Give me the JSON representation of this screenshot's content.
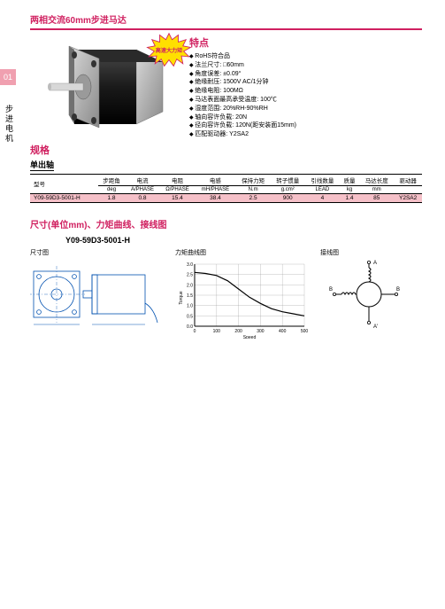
{
  "side": {
    "tab": "01",
    "text": "步进电机"
  },
  "title": "两相交流60mm步进马达",
  "starburst": "高速大力矩",
  "features": {
    "heading": "特点",
    "items": [
      "RoHS符合品",
      "法兰尺寸: □60mm",
      "角度误差: ±0.09°",
      "绝缘耐压: 1500V AC/1分钟",
      "绝缘电阻: 100MΩ",
      "马达表面最高承受温度: 100℃",
      "湿度范围: 20%RH-90%RH",
      "轴向容许负载: 20N",
      "径向容许负载: 120N(距安装面15mm)",
      "匹配驱动器: Y2SA2"
    ]
  },
  "spec": {
    "heading": "规格",
    "sub": "单出轴",
    "columns": [
      "型号",
      "步距角",
      "电流",
      "电阻",
      "电感",
      "保持力矩",
      "转子惯量",
      "引线数量",
      "质量",
      "马达长度",
      "驱动器"
    ],
    "units": [
      "",
      "deg",
      "A/PHASE",
      "Ω/PHASE",
      "mH/PHASE",
      "N.m",
      "g.cm²",
      "LEAD",
      "kg",
      "mm",
      ""
    ],
    "row": [
      "Y09-59D3-5001-H",
      "1.8",
      "0.8",
      "15.4",
      "38.4",
      "2.5",
      "900",
      "4",
      "1.4",
      "85",
      "Y2SA2"
    ],
    "colors": {
      "row_bg": "#f5c0c8",
      "accent": "#d02060"
    }
  },
  "section2": {
    "heading": "尺寸(单位mm)、力矩曲线、接线图",
    "model": "Y09-59D3-5001-H",
    "labels": {
      "dim": "尺寸图",
      "curve": "力矩曲线图",
      "wire": "接线图"
    }
  },
  "curve": {
    "ylabel": "Torque",
    "xlabel": "Speed",
    "yticks": [
      0.0,
      0.5,
      1.0,
      1.5,
      2.0,
      2.5,
      3.0
    ],
    "xticks": [
      0,
      100,
      200,
      300,
      400,
      500
    ],
    "axis_color": "#000000",
    "grid_color": "#999999",
    "line_color": "#000000",
    "line_width": 1.2,
    "points": [
      [
        0,
        2.6
      ],
      [
        50,
        2.55
      ],
      [
        100,
        2.45
      ],
      [
        150,
        2.2
      ],
      [
        200,
        1.8
      ],
      [
        250,
        1.4
      ],
      [
        300,
        1.1
      ],
      [
        350,
        0.85
      ],
      [
        400,
        0.7
      ],
      [
        450,
        0.6
      ],
      [
        500,
        0.5
      ]
    ]
  },
  "motor_render": {
    "body_color": "#1a1a1a",
    "body_highlight": "#4a4a4a",
    "flange_color": "#b8b8b8",
    "flange_edge": "#6a6a6a",
    "shaft_color": "#d8d8d8"
  },
  "wiring": {
    "phase_labels": [
      "A",
      "B",
      "A'",
      "B'"
    ],
    "coil_color": "#000000",
    "rotor_color": "#000000"
  },
  "dim_drawing": {
    "stroke": "#0050b0",
    "stroke_width": 0.8
  }
}
